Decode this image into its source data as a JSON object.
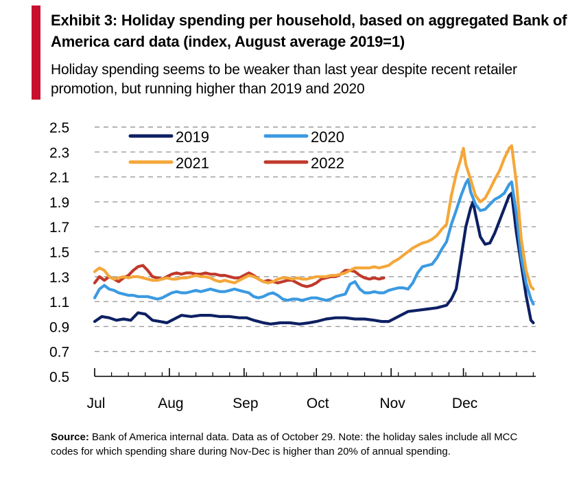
{
  "header": {
    "title": "Exhibit 3: Holiday spending per household, based on aggregated Bank of America card data  (index, August average 2019=1)",
    "subtitle": "Holiday spending seems to be weaker than last year despite recent retailer promotion, but running higher than 2019 and 2020",
    "accent_color": "#c8102e"
  },
  "footer": {
    "source_label": "Source:",
    "source_text": " Bank of America internal data. Data as of October 29. Note: the holiday sales include all MCC codes for which spending  share during Nov-Dec is higher than 20% of annual spending."
  },
  "chart_data": {
    "type": "line",
    "title": "",
    "xlabel": "",
    "ylabel": "",
    "ylim": [
      0.5,
      2.5
    ],
    "yticks": [
      0.5,
      0.7,
      0.9,
      1.1,
      1.3,
      1.5,
      1.7,
      1.9,
      2.1,
      2.3,
      2.5
    ],
    "ytick_labels": [
      "0.5",
      "0.7",
      "0.9",
      "1.1",
      "1.3",
      "1.5",
      "1.7",
      "1.9",
      "2.1",
      "2.3",
      "2.5"
    ],
    "x_axis": "day of season from Jul 1 (0) to Dec 31 (183)",
    "xlim": [
      0,
      183
    ],
    "xtick_labels": [
      "Jul",
      "Aug",
      "Sep",
      "Oct",
      "Nov",
      "Dec"
    ],
    "xtick_positions": [
      0,
      31,
      62,
      92,
      123,
      153
    ],
    "grid": "horizontal dashed",
    "legend": "top-left",
    "series": [
      {
        "name": "2019",
        "color": "#0d2063",
        "points": [
          [
            0,
            0.94
          ],
          [
            3,
            0.98
          ],
          [
            6,
            0.97
          ],
          [
            9,
            0.95
          ],
          [
            12,
            0.96
          ],
          [
            15,
            0.95
          ],
          [
            18,
            1.01
          ],
          [
            21,
            1.0
          ],
          [
            24,
            0.95
          ],
          [
            27,
            0.94
          ],
          [
            30,
            0.93
          ],
          [
            33,
            0.96
          ],
          [
            36,
            0.99
          ],
          [
            40,
            0.98
          ],
          [
            44,
            0.99
          ],
          [
            48,
            0.99
          ],
          [
            52,
            0.98
          ],
          [
            56,
            0.98
          ],
          [
            60,
            0.97
          ],
          [
            63,
            0.97
          ],
          [
            66,
            0.95
          ],
          [
            70,
            0.93
          ],
          [
            73,
            0.92
          ],
          [
            77,
            0.93
          ],
          [
            81,
            0.93
          ],
          [
            85,
            0.92
          ],
          [
            89,
            0.93
          ],
          [
            92,
            0.94
          ],
          [
            96,
            0.96
          ],
          [
            100,
            0.97
          ],
          [
            104,
            0.97
          ],
          [
            108,
            0.96
          ],
          [
            112,
            0.96
          ],
          [
            116,
            0.95
          ],
          [
            119,
            0.94
          ],
          [
            122,
            0.94
          ],
          [
            126,
            0.98
          ],
          [
            130,
            1.02
          ],
          [
            134,
            1.03
          ],
          [
            138,
            1.04
          ],
          [
            142,
            1.05
          ],
          [
            146,
            1.07
          ],
          [
            148,
            1.12
          ],
          [
            150,
            1.2
          ],
          [
            152,
            1.45
          ],
          [
            154,
            1.7
          ],
          [
            156,
            1.85
          ],
          [
            157,
            1.9
          ],
          [
            158,
            1.8
          ],
          [
            160,
            1.62
          ],
          [
            162,
            1.56
          ],
          [
            164,
            1.57
          ],
          [
            166,
            1.65
          ],
          [
            168,
            1.75
          ],
          [
            170,
            1.85
          ],
          [
            172,
            1.95
          ],
          [
            173,
            1.97
          ],
          [
            175,
            1.65
          ],
          [
            177,
            1.4
          ],
          [
            179,
            1.15
          ],
          [
            181,
            0.95
          ],
          [
            182,
            0.93
          ]
        ]
      },
      {
        "name": "2020",
        "color": "#3b9ae1",
        "points": [
          [
            0,
            1.13
          ],
          [
            2,
            1.2
          ],
          [
            4,
            1.23
          ],
          [
            6,
            1.2
          ],
          [
            8,
            1.19
          ],
          [
            10,
            1.17
          ],
          [
            12,
            1.16
          ],
          [
            14,
            1.15
          ],
          [
            16,
            1.15
          ],
          [
            18,
            1.14
          ],
          [
            20,
            1.14
          ],
          [
            22,
            1.14
          ],
          [
            24,
            1.13
          ],
          [
            26,
            1.12
          ],
          [
            28,
            1.13
          ],
          [
            30,
            1.15
          ],
          [
            32,
            1.17
          ],
          [
            34,
            1.18
          ],
          [
            36,
            1.17
          ],
          [
            38,
            1.17
          ],
          [
            40,
            1.18
          ],
          [
            42,
            1.19
          ],
          [
            44,
            1.18
          ],
          [
            46,
            1.19
          ],
          [
            48,
            1.2
          ],
          [
            50,
            1.19
          ],
          [
            52,
            1.18
          ],
          [
            54,
            1.18
          ],
          [
            56,
            1.19
          ],
          [
            58,
            1.2
          ],
          [
            60,
            1.19
          ],
          [
            62,
            1.18
          ],
          [
            64,
            1.17
          ],
          [
            66,
            1.14
          ],
          [
            68,
            1.13
          ],
          [
            70,
            1.14
          ],
          [
            72,
            1.16
          ],
          [
            74,
            1.17
          ],
          [
            76,
            1.15
          ],
          [
            78,
            1.12
          ],
          [
            80,
            1.11
          ],
          [
            82,
            1.12
          ],
          [
            84,
            1.12
          ],
          [
            86,
            1.11
          ],
          [
            88,
            1.12
          ],
          [
            90,
            1.13
          ],
          [
            92,
            1.13
          ],
          [
            94,
            1.12
          ],
          [
            96,
            1.11
          ],
          [
            98,
            1.12
          ],
          [
            100,
            1.14
          ],
          [
            102,
            1.15
          ],
          [
            104,
            1.16
          ],
          [
            106,
            1.24
          ],
          [
            108,
            1.26
          ],
          [
            110,
            1.2
          ],
          [
            112,
            1.17
          ],
          [
            114,
            1.17
          ],
          [
            116,
            1.18
          ],
          [
            118,
            1.17
          ],
          [
            120,
            1.17
          ],
          [
            122,
            1.19
          ],
          [
            124,
            1.2
          ],
          [
            126,
            1.21
          ],
          [
            128,
            1.21
          ],
          [
            130,
            1.2
          ],
          [
            132,
            1.25
          ],
          [
            134,
            1.33
          ],
          [
            136,
            1.38
          ],
          [
            138,
            1.39
          ],
          [
            140,
            1.4
          ],
          [
            142,
            1.45
          ],
          [
            144,
            1.52
          ],
          [
            146,
            1.58
          ],
          [
            148,
            1.72
          ],
          [
            150,
            1.83
          ],
          [
            152,
            1.95
          ],
          [
            154,
            2.05
          ],
          [
            155,
            2.08
          ],
          [
            156,
            1.98
          ],
          [
            158,
            1.88
          ],
          [
            160,
            1.83
          ],
          [
            162,
            1.84
          ],
          [
            164,
            1.88
          ],
          [
            166,
            1.92
          ],
          [
            168,
            1.94
          ],
          [
            170,
            1.97
          ],
          [
            172,
            2.04
          ],
          [
            173,
            2.06
          ],
          [
            175,
            1.8
          ],
          [
            177,
            1.45
          ],
          [
            179,
            1.25
          ],
          [
            181,
            1.12
          ],
          [
            182,
            1.08
          ]
        ]
      },
      {
        "name": "2021",
        "color": "#f4a73a",
        "points": [
          [
            0,
            1.34
          ],
          [
            2,
            1.37
          ],
          [
            4,
            1.35
          ],
          [
            6,
            1.3
          ],
          [
            8,
            1.28
          ],
          [
            10,
            1.29
          ],
          [
            12,
            1.3
          ],
          [
            14,
            1.29
          ],
          [
            16,
            1.3
          ],
          [
            18,
            1.3
          ],
          [
            20,
            1.29
          ],
          [
            22,
            1.28
          ],
          [
            24,
            1.27
          ],
          [
            26,
            1.27
          ],
          [
            28,
            1.28
          ],
          [
            30,
            1.29
          ],
          [
            32,
            1.28
          ],
          [
            34,
            1.28
          ],
          [
            36,
            1.29
          ],
          [
            38,
            1.29
          ],
          [
            40,
            1.3
          ],
          [
            42,
            1.31
          ],
          [
            44,
            1.3
          ],
          [
            46,
            1.3
          ],
          [
            48,
            1.29
          ],
          [
            50,
            1.27
          ],
          [
            52,
            1.26
          ],
          [
            54,
            1.27
          ],
          [
            56,
            1.26
          ],
          [
            58,
            1.25
          ],
          [
            60,
            1.27
          ],
          [
            62,
            1.29
          ],
          [
            64,
            1.31
          ],
          [
            66,
            1.3
          ],
          [
            68,
            1.28
          ],
          [
            70,
            1.26
          ],
          [
            72,
            1.25
          ],
          [
            74,
            1.26
          ],
          [
            76,
            1.28
          ],
          [
            78,
            1.29
          ],
          [
            80,
            1.29
          ],
          [
            82,
            1.28
          ],
          [
            84,
            1.29
          ],
          [
            86,
            1.28
          ],
          [
            88,
            1.28
          ],
          [
            90,
            1.29
          ],
          [
            92,
            1.3
          ],
          [
            94,
            1.3
          ],
          [
            96,
            1.3
          ],
          [
            98,
            1.31
          ],
          [
            100,
            1.31
          ],
          [
            102,
            1.32
          ],
          [
            104,
            1.33
          ],
          [
            106,
            1.35
          ],
          [
            108,
            1.37
          ],
          [
            110,
            1.37
          ],
          [
            112,
            1.37
          ],
          [
            114,
            1.37
          ],
          [
            116,
            1.38
          ],
          [
            118,
            1.37
          ],
          [
            120,
            1.38
          ],
          [
            122,
            1.39
          ],
          [
            124,
            1.42
          ],
          [
            126,
            1.44
          ],
          [
            128,
            1.47
          ],
          [
            130,
            1.5
          ],
          [
            132,
            1.53
          ],
          [
            134,
            1.55
          ],
          [
            136,
            1.57
          ],
          [
            138,
            1.58
          ],
          [
            140,
            1.6
          ],
          [
            142,
            1.63
          ],
          [
            144,
            1.68
          ],
          [
            146,
            1.72
          ],
          [
            148,
            1.95
          ],
          [
            150,
            2.12
          ],
          [
            152,
            2.25
          ],
          [
            153,
            2.33
          ],
          [
            154,
            2.2
          ],
          [
            156,
            2.08
          ],
          [
            158,
            1.95
          ],
          [
            160,
            1.9
          ],
          [
            162,
            1.93
          ],
          [
            164,
            2.0
          ],
          [
            166,
            2.08
          ],
          [
            168,
            2.15
          ],
          [
            170,
            2.25
          ],
          [
            172,
            2.33
          ],
          [
            173,
            2.35
          ],
          [
            175,
            2.05
          ],
          [
            177,
            1.6
          ],
          [
            179,
            1.35
          ],
          [
            181,
            1.22
          ],
          [
            182,
            1.2
          ]
        ]
      },
      {
        "name": "2022",
        "color": "#c0392b",
        "points": [
          [
            0,
            1.25
          ],
          [
            2,
            1.3
          ],
          [
            4,
            1.27
          ],
          [
            6,
            1.3
          ],
          [
            8,
            1.28
          ],
          [
            10,
            1.26
          ],
          [
            12,
            1.29
          ],
          [
            14,
            1.31
          ],
          [
            16,
            1.35
          ],
          [
            18,
            1.38
          ],
          [
            20,
            1.39
          ],
          [
            22,
            1.35
          ],
          [
            24,
            1.3
          ],
          [
            26,
            1.29
          ],
          [
            28,
            1.28
          ],
          [
            30,
            1.3
          ],
          [
            32,
            1.32
          ],
          [
            34,
            1.33
          ],
          [
            36,
            1.32
          ],
          [
            38,
            1.33
          ],
          [
            40,
            1.33
          ],
          [
            42,
            1.32
          ],
          [
            44,
            1.32
          ],
          [
            46,
            1.33
          ],
          [
            48,
            1.32
          ],
          [
            50,
            1.32
          ],
          [
            52,
            1.31
          ],
          [
            54,
            1.31
          ],
          [
            56,
            1.3
          ],
          [
            58,
            1.29
          ],
          [
            60,
            1.29
          ],
          [
            62,
            1.31
          ],
          [
            64,
            1.33
          ],
          [
            66,
            1.31
          ],
          [
            68,
            1.28
          ],
          [
            70,
            1.26
          ],
          [
            72,
            1.27
          ],
          [
            74,
            1.26
          ],
          [
            76,
            1.25
          ],
          [
            78,
            1.26
          ],
          [
            80,
            1.27
          ],
          [
            82,
            1.27
          ],
          [
            84,
            1.25
          ],
          [
            86,
            1.23
          ],
          [
            88,
            1.22
          ],
          [
            90,
            1.23
          ],
          [
            92,
            1.25
          ],
          [
            94,
            1.28
          ],
          [
            96,
            1.29
          ],
          [
            98,
            1.3
          ],
          [
            100,
            1.3
          ],
          [
            102,
            1.32
          ],
          [
            104,
            1.35
          ],
          [
            106,
            1.35
          ],
          [
            108,
            1.34
          ],
          [
            110,
            1.31
          ],
          [
            112,
            1.29
          ],
          [
            114,
            1.28
          ],
          [
            116,
            1.29
          ],
          [
            118,
            1.28
          ],
          [
            120,
            1.29
          ]
        ]
      }
    ]
  }
}
